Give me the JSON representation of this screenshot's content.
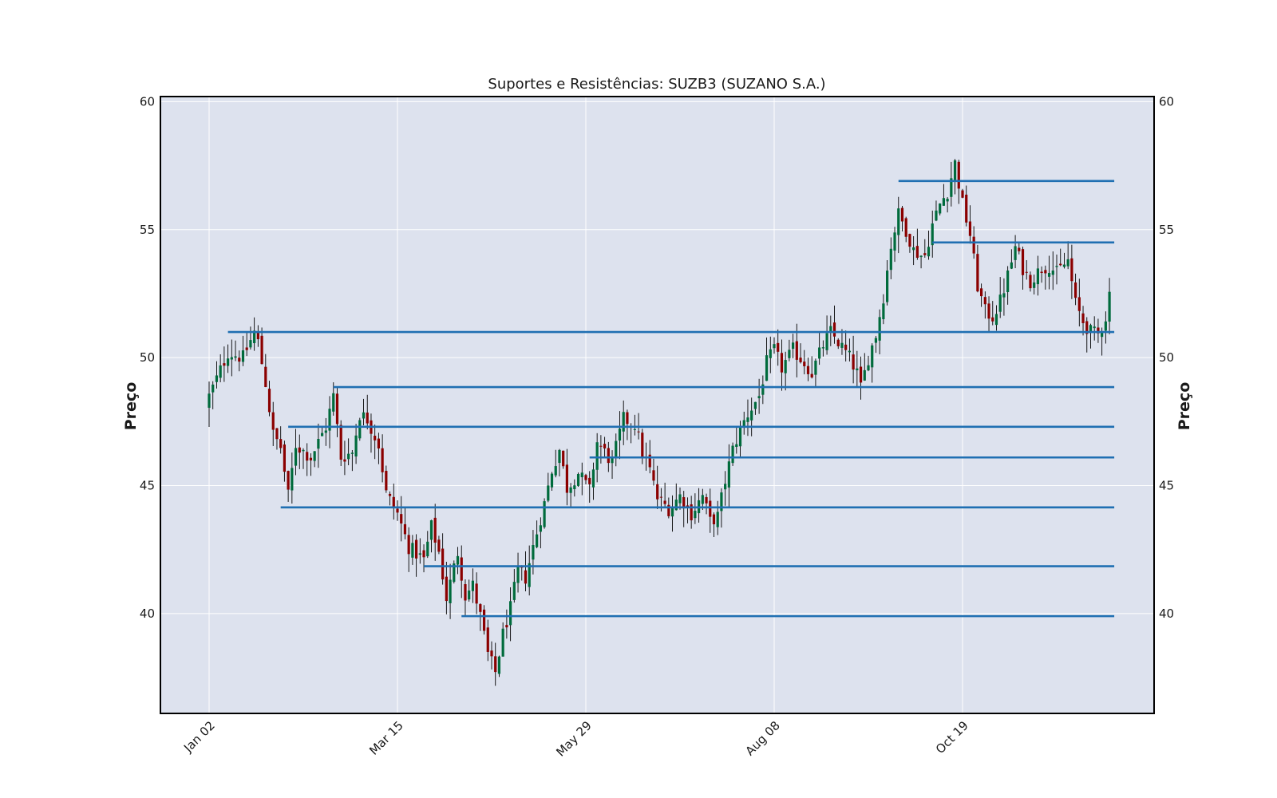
{
  "chart_data": {
    "type": "candlestick",
    "title": "Suportes e Resistências: SUZB3 (SUZANO S.A.)",
    "ylabel": "Preço",
    "ylabel_right": "Preço",
    "ylim": [
      36.1,
      60.2
    ],
    "y_ticks": [
      40,
      45,
      50,
      55,
      60
    ],
    "x_ticks": [
      {
        "index": 0,
        "label": "Jan 02"
      },
      {
        "index": 50,
        "label": "Mar 15"
      },
      {
        "index": 100,
        "label": "May 29"
      },
      {
        "index": 150,
        "label": "Aug 08"
      },
      {
        "index": 200,
        "label": "Oct 19"
      }
    ],
    "grid": true,
    "colors": {
      "background": "#dde2ee",
      "up": "#006b3c",
      "down": "#8b0000",
      "wick": "#000000",
      "level": "#1f6fb2",
      "grid": "#ffffff"
    },
    "price_path": [
      [
        0,
        48.5
      ],
      [
        5,
        50.2
      ],
      [
        9,
        50.0
      ],
      [
        12,
        51.0
      ],
      [
        13,
        50.6
      ],
      [
        15,
        49.0
      ],
      [
        17,
        47.0
      ],
      [
        19,
        46.5
      ],
      [
        21,
        44.6
      ],
      [
        23,
        46.6
      ],
      [
        27,
        46.1
      ],
      [
        31,
        47.3
      ],
      [
        33,
        48.5
      ],
      [
        35,
        46.1
      ],
      [
        38,
        46.3
      ],
      [
        40,
        47.8
      ],
      [
        42,
        47.6
      ],
      [
        45,
        46.6
      ],
      [
        47,
        44.7
      ],
      [
        50,
        43.9
      ],
      [
        53,
        42.6
      ],
      [
        57,
        42.1
      ],
      [
        59,
        43.4
      ],
      [
        61,
        42.4
      ],
      [
        63,
        40.6
      ],
      [
        66,
        42.4
      ],
      [
        68,
        40.7
      ],
      [
        70,
        41.1
      ],
      [
        72,
        39.9
      ],
      [
        74,
        38.4
      ],
      [
        76,
        37.7
      ],
      [
        78,
        39.2
      ],
      [
        80,
        40.2
      ],
      [
        82,
        41.7
      ],
      [
        84,
        41.4
      ],
      [
        86,
        42.6
      ],
      [
        89,
        44.3
      ],
      [
        91,
        45.6
      ],
      [
        93,
        46.4
      ],
      [
        95,
        44.9
      ],
      [
        98,
        45.5
      ],
      [
        101,
        44.8
      ],
      [
        103,
        46.7
      ],
      [
        105,
        46.3
      ],
      [
        107,
        45.9
      ],
      [
        110,
        47.6
      ],
      [
        113,
        47.4
      ],
      [
        115,
        46.3
      ],
      [
        117,
        45.6
      ],
      [
        119,
        44.5
      ],
      [
        122,
        44.1
      ],
      [
        125,
        44.6
      ],
      [
        128,
        43.9
      ],
      [
        131,
        44.6
      ],
      [
        133,
        43.6
      ],
      [
        135,
        43.8
      ],
      [
        137,
        45.2
      ],
      [
        139,
        46.4
      ],
      [
        141,
        47.2
      ],
      [
        143,
        47.8
      ],
      [
        146,
        48.5
      ],
      [
        148,
        49.8
      ],
      [
        150,
        50.3
      ],
      [
        152,
        49.6
      ],
      [
        155,
        50.3
      ],
      [
        158,
        49.8
      ],
      [
        160,
        49.4
      ],
      [
        163,
        50.5
      ],
      [
        165,
        51.0
      ],
      [
        167,
        50.6
      ],
      [
        170,
        50.0
      ],
      [
        172,
        49.4
      ],
      [
        173,
        48.8
      ],
      [
        175,
        50.0
      ],
      [
        177,
        50.9
      ],
      [
        179,
        52.4
      ],
      [
        181,
        54.4
      ],
      [
        183,
        55.6
      ],
      [
        185,
        55.0
      ],
      [
        187,
        54.2
      ],
      [
        189,
        54.0
      ],
      [
        190,
        54.0
      ],
      [
        192,
        55.2
      ],
      [
        194,
        56.0
      ],
      [
        196,
        56.5
      ],
      [
        198,
        57.6
      ],
      [
        200,
        56.0
      ],
      [
        202,
        54.8
      ],
      [
        204,
        52.8
      ],
      [
        206,
        51.8
      ],
      [
        208,
        51.6
      ],
      [
        210,
        52.2
      ],
      [
        212,
        53.2
      ],
      [
        214,
        54.3
      ],
      [
        216,
        53.5
      ],
      [
        218,
        53.0
      ],
      [
        221,
        53.5
      ],
      [
        223,
        53.6
      ],
      [
        225,
        53.3
      ],
      [
        228,
        53.8
      ],
      [
        230,
        52.1
      ],
      [
        232,
        51.4
      ],
      [
        234,
        51.0
      ],
      [
        236,
        50.9
      ],
      [
        238,
        51.6
      ],
      [
        239,
        52.5
      ]
    ],
    "levels": [
      {
        "price": 56.9,
        "start_index": 183
      },
      {
        "price": 54.5,
        "start_index": 192
      },
      {
        "price": 51.0,
        "start_index": 5
      },
      {
        "price": 48.85,
        "start_index": 33
      },
      {
        "price": 47.3,
        "start_index": 21
      },
      {
        "price": 46.1,
        "start_index": 101
      },
      {
        "price": 44.15,
        "start_index": 19
      },
      {
        "price": 41.85,
        "start_index": 57
      },
      {
        "price": 39.9,
        "start_index": 67
      }
    ],
    "level_end_index": 239
  }
}
